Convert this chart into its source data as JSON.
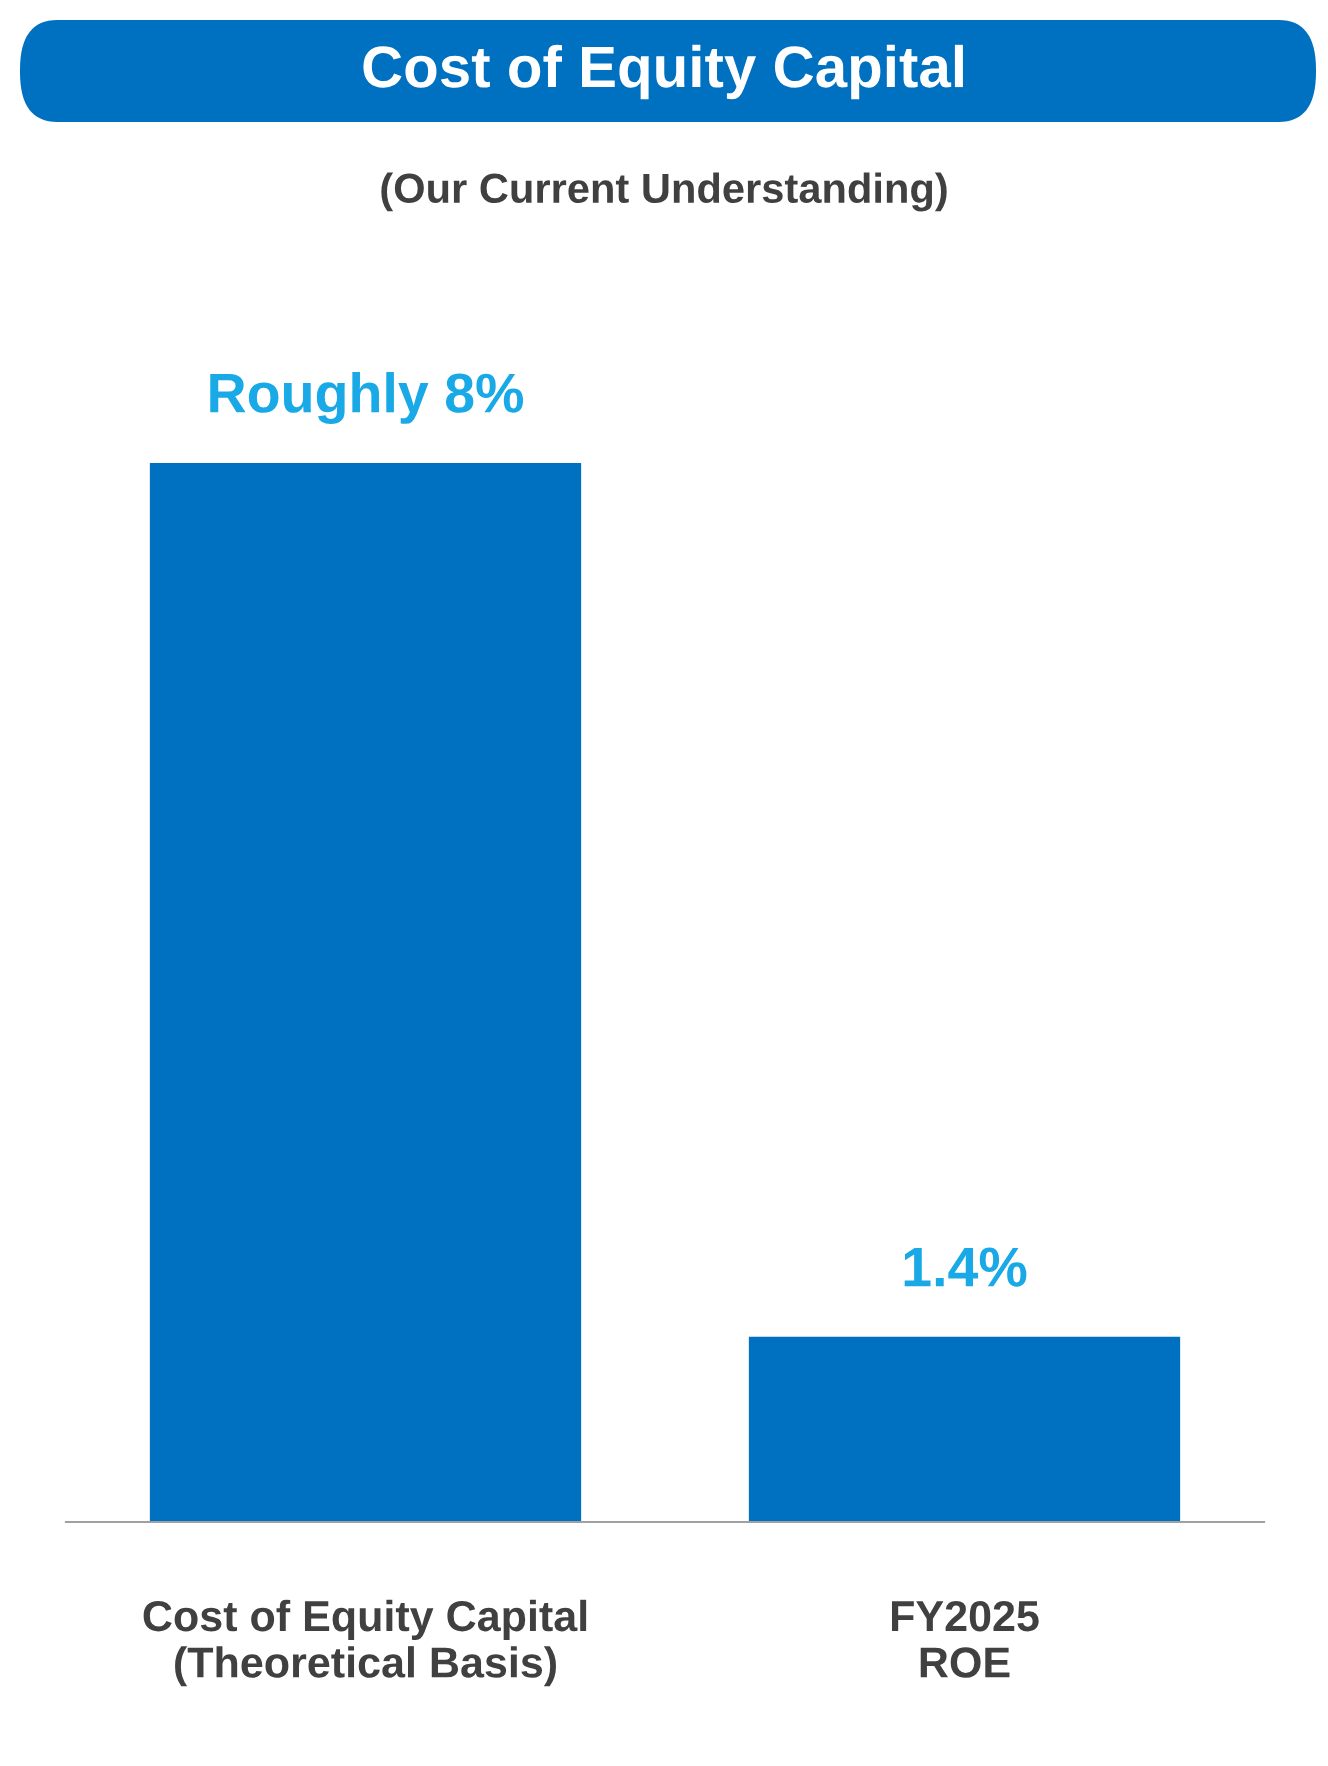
{
  "chart_data": {
    "type": "bar",
    "title": "Cost of Equity Capital",
    "subtitle": "(Our Current Understanding)",
    "categories": [
      "Cost of Equity Capital\n(Theoretical Basis)",
      "FY2025\nROE"
    ],
    "values": [
      8,
      1.4
    ],
    "value_labels": [
      "Roughly 8%",
      "1.4%"
    ],
    "color": "#0070c0"
  }
}
